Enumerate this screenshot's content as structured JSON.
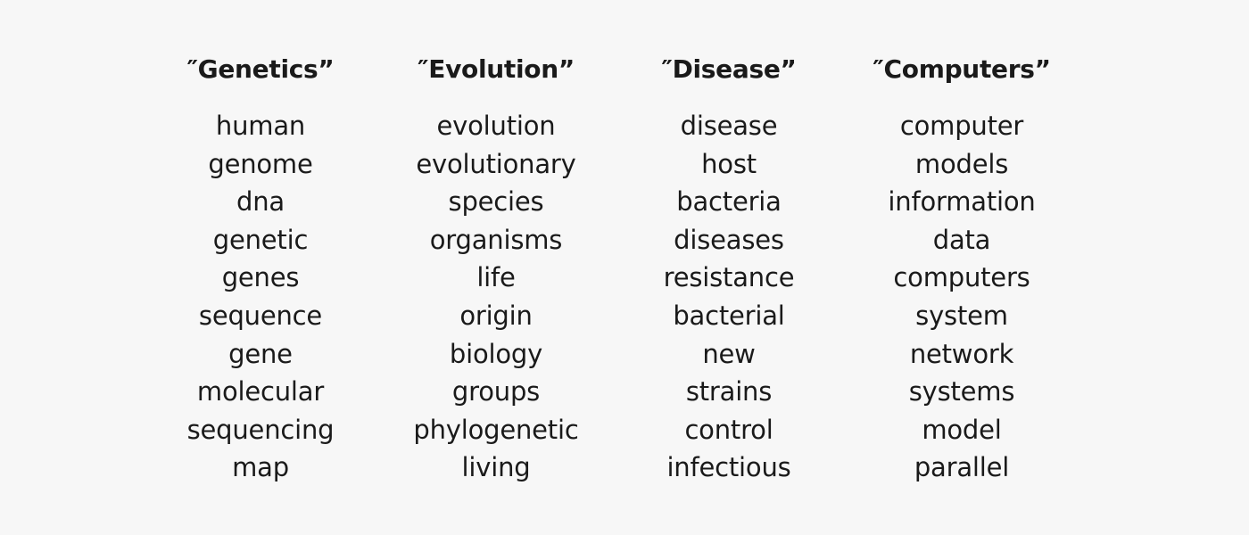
{
  "topics": [
    {
      "title": "″Genetics”",
      "words": [
        "human",
        "genome",
        "dna",
        "genetic",
        "genes",
        "sequence",
        "gene",
        "molecular",
        "sequencing",
        "map"
      ]
    },
    {
      "title": "″Evolution”",
      "words": [
        "evolution",
        "evolutionary",
        "species",
        "organisms",
        "life",
        "origin",
        "biology",
        "groups",
        "phylogenetic",
        "living"
      ]
    },
    {
      "title": "″Disease”",
      "words": [
        "disease",
        "host",
        "bacteria",
        "diseases",
        "resistance",
        "bacterial",
        "new",
        "strains",
        "control",
        "infectious"
      ]
    },
    {
      "title": "″Computers”",
      "words": [
        "computer",
        "models",
        "information",
        "data",
        "computers",
        "system",
        "network",
        "systems",
        "model",
        "parallel"
      ]
    }
  ],
  "colors": {
    "background": "#f7f7f7",
    "text": "#1a1a1a"
  }
}
